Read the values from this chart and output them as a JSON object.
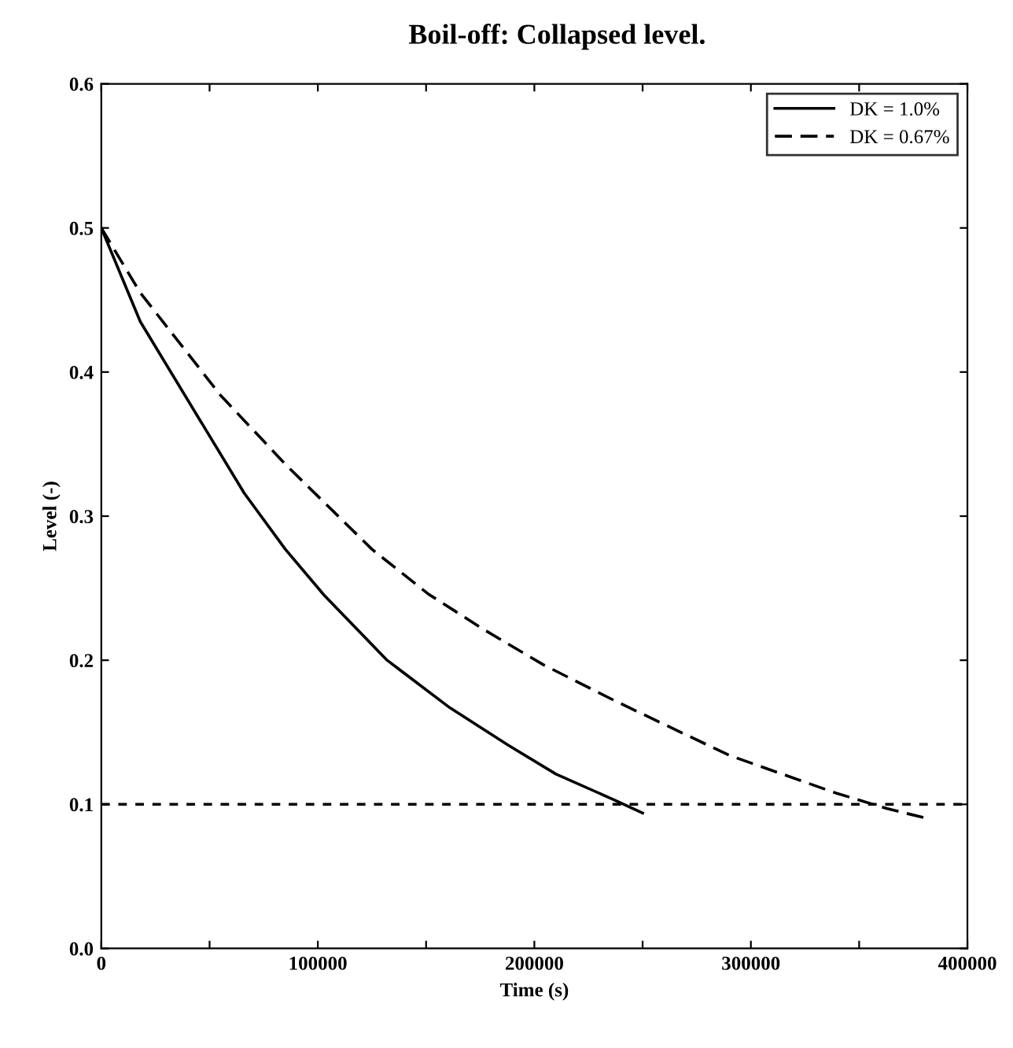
{
  "chart_data": {
    "type": "line",
    "title": "Boil-off: Collapsed level.",
    "xlabel": "Time (s)",
    "ylabel": "Level (-)",
    "xlim": [
      0,
      400000
    ],
    "ylim": [
      0,
      0.6
    ],
    "xticks": [
      0,
      {
        "value": 50000,
        "label": null
      },
      100000,
      {
        "value": 150000,
        "label": null
      },
      200000,
      {
        "value": 250000,
        "label": null
      },
      300000,
      {
        "value": 350000,
        "label": null
      },
      400000
    ],
    "yticks": [
      {
        "value": 0,
        "label": "0.0"
      },
      0.1,
      0.2,
      0.3,
      0.4,
      0.5,
      0.6
    ],
    "grid": false,
    "legend": "top right",
    "marker": "none",
    "series": [
      {
        "name": "DK = 1.0%",
        "color": "#000000",
        "line_style": "solid",
        "x": [
          0,
          18000,
          45000,
          66000,
          85000,
          103000,
          132000,
          161000,
          188000,
          210000,
          237000,
          250000
        ],
        "values": [
          0.5,
          0.435,
          0.368,
          0.316,
          0.277,
          0.245,
          0.2,
          0.167,
          0.141,
          0.121,
          0.103,
          0.094
        ]
      },
      {
        "name": "DK = 0.67%",
        "color": "#000000",
        "line_style": "dashed",
        "x": [
          0,
          18000,
          55000,
          85000,
          125000,
          151000,
          177000,
          204000,
          237000,
          290000,
          339000,
          363000,
          382000
        ],
        "values": [
          0.5,
          0.455,
          0.384,
          0.336,
          0.277,
          0.246,
          0.221,
          0.197,
          0.172,
          0.134,
          0.108,
          0.097,
          0.09
        ]
      }
    ],
    "ref_lines": [
      {
        "axis": "y",
        "value": 0.1,
        "color": "#000000",
        "line_style": "dotted"
      }
    ]
  }
}
